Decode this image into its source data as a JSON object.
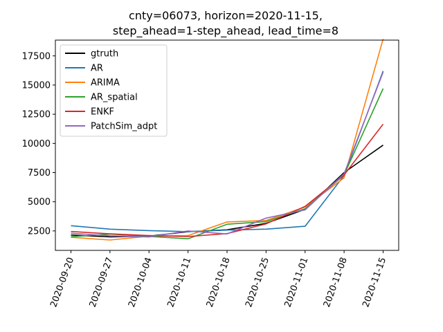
{
  "chart_data": {
    "type": "line",
    "title_lines": [
      "cnty=06073, horizon=2020-11-15,",
      "step_ahead=1-step_ahead, lead_time=8"
    ],
    "xlabel": "",
    "ylabel": "",
    "x": [
      "2020-09-20",
      "2020-09-27",
      "2020-10-04",
      "2020-10-11",
      "2020-10-18",
      "2020-10-25",
      "2020-11-01",
      "2020-11-08",
      "2020-11-15"
    ],
    "y_ticks": [
      2500,
      5000,
      7500,
      10000,
      12500,
      15000,
      17500
    ],
    "y_tick_labels": [
      "2500",
      "5000",
      "7500",
      "10000",
      "12500",
      "15000",
      "17500"
    ],
    "ylim": [
      832,
      18850
    ],
    "grid": false,
    "legend_position": "upper-left",
    "series": [
      {
        "name": "gtruth",
        "color": "#000000",
        "values": [
          2150,
          1990,
          2050,
          2430,
          2600,
          3150,
          4350,
          7500,
          9850
        ]
      },
      {
        "name": "AR",
        "color": "#1f77b4",
        "values": [
          2950,
          2650,
          2530,
          2440,
          2570,
          2650,
          2900,
          7250,
          16200
        ]
      },
      {
        "name": "ARIMA",
        "color": "#ff7f0e",
        "values": [
          1950,
          1720,
          2050,
          2100,
          3270,
          3400,
          4550,
          7050,
          18950
        ]
      },
      {
        "name": "AR_spatial",
        "color": "#2ca02c",
        "values": [
          2000,
          2230,
          2030,
          1830,
          3070,
          3300,
          4400,
          7300,
          14700
        ]
      },
      {
        "name": "ENKF",
        "color": "#d62728",
        "values": [
          2450,
          2250,
          2100,
          2020,
          2270,
          3100,
          4600,
          7300,
          11650
        ]
      },
      {
        "name": "PatchSim_adpt",
        "color": "#9467bd",
        "values": [
          2300,
          2080,
          1980,
          2500,
          2240,
          3600,
          4300,
          7400,
          16100
        ]
      }
    ]
  }
}
